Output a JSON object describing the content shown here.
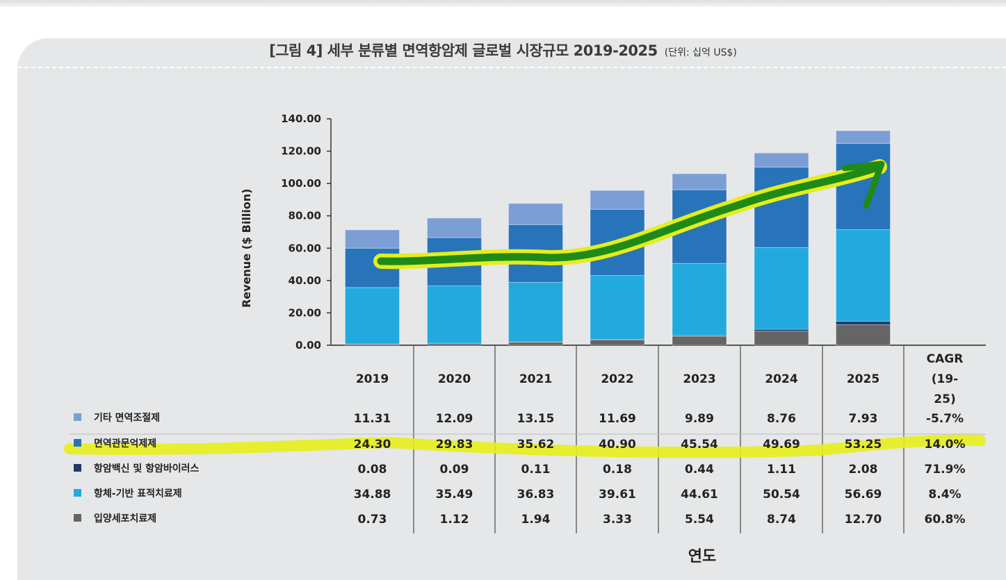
{
  "figure": {
    "title": "[그림 4] 세부 분류별 면역항암제 글로벌 시장규모 2019-2025",
    "unit": "(단위: 십억 US$)"
  },
  "chart_data": {
    "type": "bar",
    "stacked": true,
    "title": "[그림 4] 세부 분류별 면역항암제 글로벌 시장규모 2019-2025",
    "ylabel": "Revenue ($ Billion)",
    "xlabel": "연도",
    "ylim": [
      0,
      140
    ],
    "yticks": [
      "0.00",
      "20.00",
      "40.00",
      "60.00",
      "80.00",
      "100.00",
      "120.00",
      "140.00"
    ],
    "categories": [
      "2019",
      "2020",
      "2021",
      "2022",
      "2023",
      "2024",
      "2025"
    ],
    "cagr_header": [
      "CAGR",
      "(19-",
      "25)"
    ],
    "series": [
      {
        "name": "기타 면역조절제",
        "color": "#7b9fd4",
        "values": [
          "11.31",
          "12.09",
          "13.15",
          "11.69",
          "9.89",
          "8.76",
          "7.93"
        ],
        "cagr": "-5.7%"
      },
      {
        "name": "면역관문억제제",
        "color": "#2874bb",
        "values": [
          "24.30",
          "29.83",
          "35.62",
          "40.90",
          "45.54",
          "49.69",
          "53.25"
        ],
        "cagr": "14.0%"
      },
      {
        "name": "항암백신 및 항암바이러스",
        "color": "#1f3a66",
        "values": [
          "0.08",
          "0.09",
          "0.11",
          "0.18",
          "0.44",
          "1.11",
          "2.08"
        ],
        "cagr": "71.9%"
      },
      {
        "name": "항체-기반 표적치료제",
        "color": "#22aade",
        "values": [
          "34.88",
          "35.49",
          "36.83",
          "39.61",
          "44.61",
          "50.54",
          "56.69"
        ],
        "cagr": "8.4%"
      },
      {
        "name": "입양세포치료제",
        "color": "#656565",
        "values": [
          "0.73",
          "1.12",
          "1.94",
          "3.33",
          "5.54",
          "8.74",
          "12.70"
        ],
        "cagr": "60.8%"
      }
    ]
  }
}
